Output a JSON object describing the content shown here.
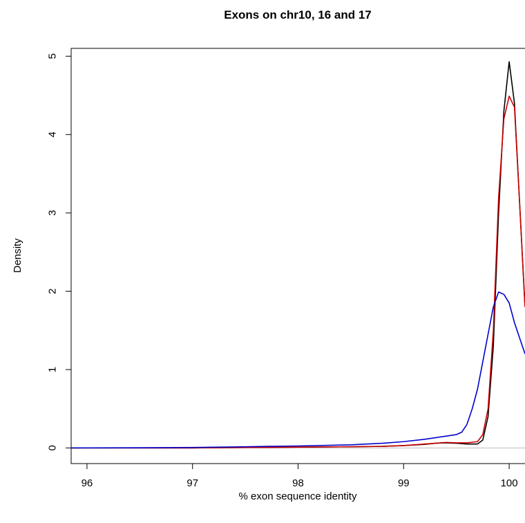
{
  "chart_data": {
    "type": "line",
    "title": "Exons on chr10, 16 and 17",
    "xlabel": "% exon sequence identity",
    "ylabel": "Density",
    "xlim": [
      95.85,
      100.15
    ],
    "ylim": [
      -0.2,
      5.1
    ],
    "x_ticks": [
      "96",
      "97",
      "98",
      "99",
      "100"
    ],
    "y_ticks": [
      "0",
      "1",
      "2",
      "3",
      "4",
      "5"
    ],
    "grid": false,
    "legend": "none",
    "baseline": {
      "y": 0,
      "color": "#bdbdbd"
    },
    "series": [
      {
        "color": "#000000",
        "x": [
          95.8,
          96.5,
          97.0,
          97.5,
          98.0,
          98.5,
          98.8,
          99.0,
          99.2,
          99.3,
          99.4,
          99.5,
          99.6,
          99.7,
          99.75,
          99.8,
          99.85,
          99.9,
          99.95,
          100.0,
          100.05,
          100.1,
          100.15
        ],
        "values": [
          0.0,
          0.0,
          0.0,
          0.005,
          0.01,
          0.015,
          0.02,
          0.03,
          0.045,
          0.06,
          0.065,
          0.06,
          0.05,
          0.05,
          0.1,
          0.4,
          1.3,
          3.0,
          4.3,
          4.93,
          4.4,
          3.1,
          1.8
        ]
      },
      {
        "color": "#cc0000",
        "x": [
          95.8,
          96.5,
          97.0,
          97.5,
          98.0,
          98.5,
          98.8,
          99.0,
          99.2,
          99.3,
          99.4,
          99.5,
          99.6,
          99.7,
          99.75,
          99.8,
          99.85,
          99.9,
          99.95,
          100.0,
          100.05,
          100.1,
          100.15
        ],
        "values": [
          0.0,
          0.0,
          0.0,
          0.005,
          0.01,
          0.015,
          0.02,
          0.03,
          0.05,
          0.06,
          0.07,
          0.065,
          0.065,
          0.08,
          0.17,
          0.5,
          1.5,
          3.2,
          4.2,
          4.49,
          4.35,
          3.1,
          1.8
        ]
      },
      {
        "color": "#0000cc",
        "x": [
          95.8,
          96.5,
          97.0,
          97.5,
          98.0,
          98.5,
          98.8,
          99.0,
          99.2,
          99.3,
          99.4,
          99.5,
          99.55,
          99.6,
          99.65,
          99.7,
          99.75,
          99.8,
          99.85,
          99.9,
          99.95,
          100.0,
          100.05,
          100.1,
          100.15
        ],
        "values": [
          0.0,
          0.002,
          0.006,
          0.015,
          0.025,
          0.04,
          0.06,
          0.08,
          0.11,
          0.13,
          0.15,
          0.17,
          0.2,
          0.3,
          0.5,
          0.75,
          1.1,
          1.45,
          1.8,
          1.99,
          1.96,
          1.85,
          1.6,
          1.4,
          1.2
        ]
      }
    ]
  }
}
